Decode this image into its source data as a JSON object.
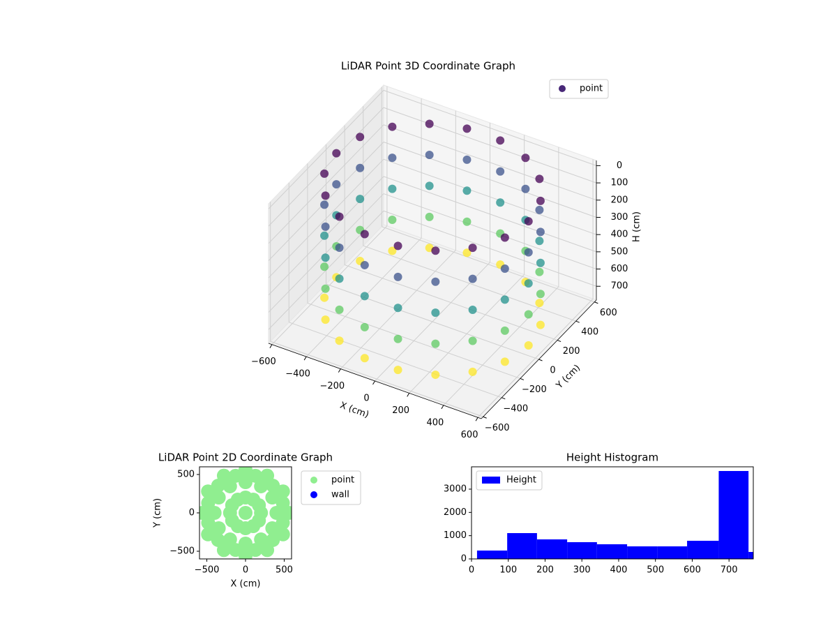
{
  "chart_data": [
    {
      "type": "scatter3d",
      "title": "LiDAR Point 3D Coordinate Graph",
      "xlabel": "X (cm)",
      "ylabel": "Y (cm)",
      "zlabel": "H (cm)",
      "xlim": [
        -620,
        620
      ],
      "ylim": [
        -620,
        620
      ],
      "zlim": [
        780,
        -30
      ],
      "xticks": [
        {
          "value": -600,
          "label": "−600"
        },
        {
          "value": -400,
          "label": "−400"
        },
        {
          "value": -200,
          "label": "−200"
        },
        0,
        200,
        400,
        600
      ],
      "yticks": [
        {
          "value": -600,
          "label": "−600"
        },
        {
          "value": -400,
          "label": "−400"
        },
        {
          "value": -200,
          "label": "−200"
        },
        0,
        200,
        400,
        600
      ],
      "zticks": [
        0,
        100,
        200,
        300,
        400,
        500,
        600,
        700
      ],
      "grid": true,
      "colormap": "viridis",
      "legend": "upper right",
      "series": [
        {
          "name": "point",
          "color": "#482878",
          "x": [
            560,
            526,
            429,
            280,
            97,
            -97,
            -280,
            -429,
            -526,
            -560,
            -526,
            -429,
            -280,
            -97,
            97,
            280,
            429,
            526,
            560,
            526,
            429,
            280,
            97,
            -97,
            -280,
            -429,
            -526,
            -560,
            -526,
            -429,
            -280,
            -97,
            97,
            280,
            429,
            526,
            560,
            526,
            429,
            280,
            97,
            -97,
            -280,
            -429,
            -526,
            -560,
            -526,
            -429,
            -280,
            -97,
            97,
            280,
            429,
            526,
            560,
            526,
            429,
            280,
            97,
            -97,
            -280,
            -429,
            -526,
            -560,
            -526,
            -429,
            -280,
            -97,
            97,
            280,
            429,
            526,
            560,
            526,
            429,
            280,
            97,
            -97,
            -280,
            -429,
            -526,
            -560,
            -526,
            -429,
            -280,
            -97,
            97,
            280,
            429,
            526
          ],
          "y": [
            0,
            192,
            360,
            485,
            551,
            551,
            485,
            360,
            192,
            0,
            -192,
            -360,
            -485,
            -551,
            -551,
            -485,
            -360,
            -192,
            0,
            192,
            360,
            485,
            551,
            551,
            485,
            360,
            192,
            0,
            -192,
            -360,
            -485,
            -551,
            -551,
            -485,
            -360,
            -192,
            0,
            192,
            360,
            485,
            551,
            551,
            485,
            360,
            192,
            0,
            -192,
            -360,
            -485,
            -551,
            -551,
            -485,
            -360,
            -192,
            0,
            192,
            360,
            485,
            551,
            551,
            485,
            360,
            192,
            0,
            -192,
            -360,
            -485,
            -551,
            -551,
            -485,
            -360,
            -192,
            0,
            192,
            360,
            485,
            551,
            551,
            485,
            360,
            192,
            0,
            -192,
            -360,
            -485,
            -551,
            -551,
            -485,
            -360,
            -192
          ],
          "z": [
            0,
            0,
            0,
            0,
            0,
            0,
            0,
            0,
            0,
            0,
            0,
            0,
            0,
            0,
            0,
            0,
            0,
            0,
            180,
            180,
            180,
            180,
            180,
            180,
            180,
            180,
            180,
            180,
            180,
            180,
            180,
            180,
            180,
            180,
            180,
            180,
            360,
            360,
            360,
            360,
            360,
            360,
            360,
            360,
            360,
            360,
            360,
            360,
            360,
            360,
            360,
            360,
            360,
            360,
            540,
            540,
            540,
            540,
            540,
            540,
            540,
            540,
            540,
            540,
            540,
            540,
            540,
            540,
            540,
            540,
            540,
            540,
            720,
            720,
            720,
            720,
            720,
            720,
            720,
            720,
            720,
            720,
            720,
            720,
            720,
            720,
            720,
            720,
            720,
            720
          ]
        }
      ]
    },
    {
      "type": "scatter",
      "title": "LiDAR Point 2D Coordinate Graph",
      "xlabel": "X (cm)",
      "ylabel": "Y (cm)",
      "xlim": [
        -595,
        595
      ],
      "ylim": [
        -600,
        600
      ],
      "xticks": [
        {
          "value": -500,
          "label": "−500"
        },
        0,
        500
      ],
      "yticks": [
        {
          "value": -500,
          "label": "−500"
        },
        0,
        500
      ],
      "legend": "outside upper right",
      "series": [
        {
          "name": "point",
          "color": "#90ee90",
          "x": [
            0,
            560,
            485,
            280,
            0,
            -280,
            -485,
            -560,
            -485,
            -280,
            0,
            280,
            485,
            400,
            346,
            200,
            0,
            -200,
            -346,
            -400,
            -346,
            -200,
            0,
            200,
            346,
            200,
            173,
            100,
            0,
            -100,
            -173,
            -200,
            -173,
            -100,
            0,
            100,
            173,
            483,
            354,
            129,
            -129,
            -354,
            -483,
            -483,
            -354,
            -129,
            129,
            354,
            483
          ],
          "y": [
            0,
            0,
            280,
            485,
            560,
            485,
            280,
            0,
            -280,
            -485,
            -560,
            -485,
            -280,
            0,
            200,
            346,
            400,
            346,
            200,
            0,
            -200,
            -346,
            -400,
            -346,
            -200,
            0,
            100,
            173,
            200,
            173,
            100,
            0,
            -100,
            -173,
            -200,
            -173,
            -100,
            129,
            354,
            483,
            483,
            354,
            129,
            -129,
            -354,
            -483,
            -483,
            -354,
            -129
          ]
        },
        {
          "name": "wall",
          "color": "#0000ff",
          "x": [],
          "y": []
        }
      ]
    },
    {
      "type": "histogram",
      "title": "Height Histogram",
      "bins": [
        15,
        97,
        178,
        260,
        341,
        423,
        505,
        586,
        672,
        753,
        834
      ],
      "xlim": [
        0,
        766
      ],
      "ylim": [
        0,
        3960
      ],
      "xticks": [
        0,
        100,
        200,
        300,
        400,
        500,
        600,
        700
      ],
      "yticks": [
        0,
        1000,
        2000,
        3000
      ],
      "legend": "upper left",
      "series": [
        {
          "name": "Height",
          "color": "#0000ff",
          "values": [
            360,
            1110,
            840,
            720,
            630,
            540,
            540,
            780,
            3780,
            300
          ]
        }
      ]
    }
  ]
}
